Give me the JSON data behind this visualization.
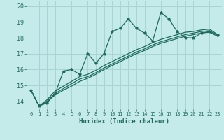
{
  "xlabel": "Humidex (Indice chaleur)",
  "background_color": "#c5eaea",
  "grid_color": "#a8d4d4",
  "line_color": "#1e6b5e",
  "xlim": [
    -0.5,
    23.5
  ],
  "ylim": [
    13.5,
    20.3
  ],
  "yticks": [
    14,
    15,
    16,
    17,
    18,
    19,
    20
  ],
  "xticks": [
    0,
    1,
    2,
    3,
    4,
    5,
    6,
    7,
    8,
    9,
    10,
    11,
    12,
    13,
    14,
    15,
    16,
    17,
    18,
    19,
    20,
    21,
    22,
    23
  ],
  "series1": [
    14.7,
    13.7,
    13.9,
    14.5,
    15.9,
    16.0,
    15.7,
    17.0,
    16.4,
    17.0,
    18.4,
    18.6,
    19.2,
    18.6,
    18.3,
    17.8,
    19.6,
    19.2,
    18.4,
    18.0,
    18.0,
    18.3,
    18.4,
    18.2
  ],
  "series2": [
    14.7,
    13.7,
    14.0,
    14.5,
    14.8,
    15.1,
    15.4,
    15.55,
    15.8,
    16.1,
    16.35,
    16.6,
    16.85,
    17.1,
    17.3,
    17.55,
    17.75,
    17.9,
    18.05,
    18.2,
    18.3,
    18.4,
    18.45,
    18.15
  ],
  "series3": [
    14.7,
    13.7,
    14.0,
    14.4,
    14.7,
    14.95,
    15.25,
    15.45,
    15.7,
    16.0,
    16.25,
    16.5,
    16.75,
    17.0,
    17.2,
    17.45,
    17.65,
    17.8,
    17.95,
    18.1,
    18.2,
    18.3,
    18.35,
    18.1
  ],
  "series4": [
    14.7,
    13.7,
    14.1,
    14.65,
    14.95,
    15.25,
    15.55,
    15.7,
    15.95,
    16.25,
    16.5,
    16.75,
    17.0,
    17.25,
    17.45,
    17.7,
    17.9,
    18.05,
    18.2,
    18.35,
    18.4,
    18.5,
    18.55,
    18.2
  ]
}
